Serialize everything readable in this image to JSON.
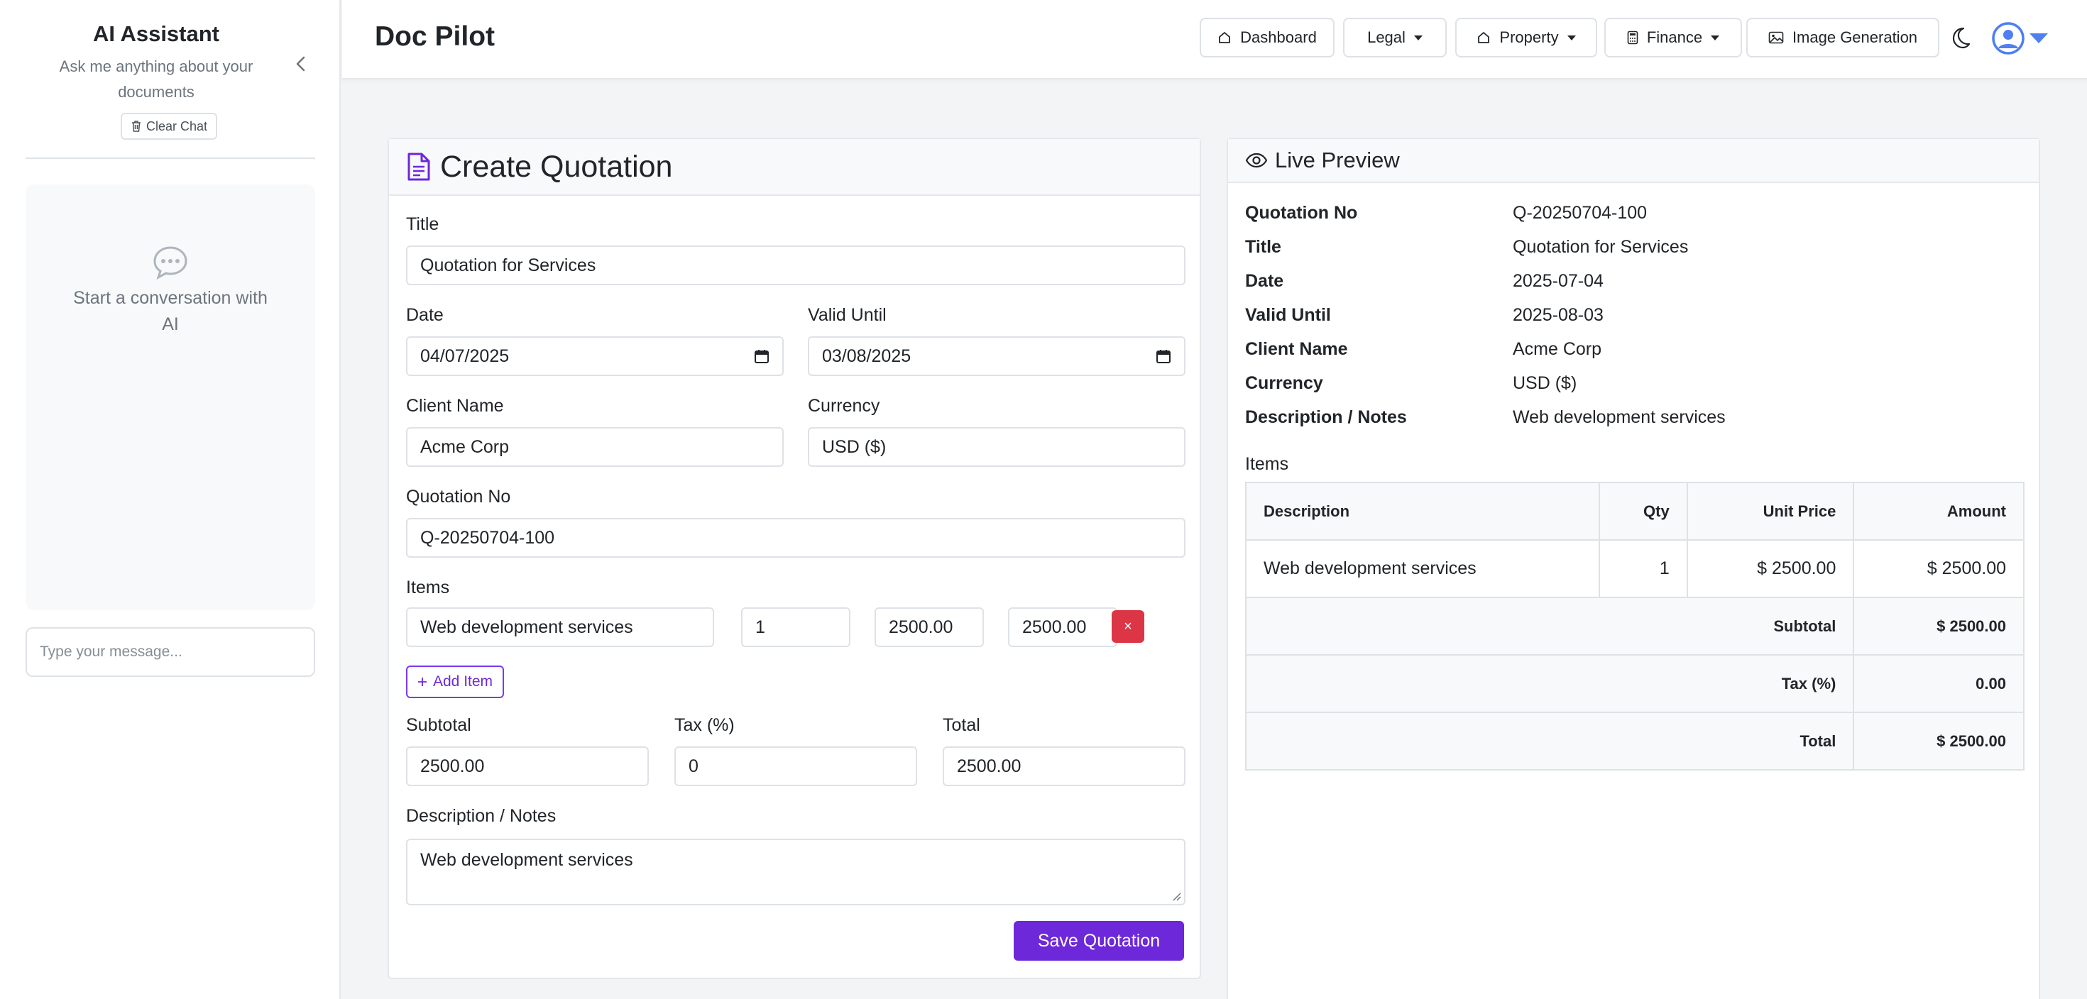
{
  "sidebar": {
    "title": "AI Assistant",
    "subtitle": "Ask me anything about your documents",
    "clear_label": "Clear Chat",
    "empty_text": "Start a conversation with AI",
    "input_placeholder": "Type your message..."
  },
  "header": {
    "brand": "Doc Pilot",
    "nav": {
      "dashboard": "Dashboard",
      "legal": "Legal",
      "property": "Property",
      "finance": "Finance",
      "image_generation": "Image Generation"
    }
  },
  "form": {
    "title": "Create Quotation",
    "labels": {
      "title": "Title",
      "date": "Date",
      "valid_until": "Valid Until",
      "client_name": "Client Name",
      "currency": "Currency",
      "quotation_no": "Quotation No",
      "items": "Items",
      "subtotal": "Subtotal",
      "tax": "Tax (%)",
      "total": "Total",
      "description": "Description / Notes"
    },
    "values": {
      "title": "Quotation for Services",
      "date": "04/07/2025",
      "valid_until": "03/08/2025",
      "client_name": "Acme Corp",
      "currency": "USD ($)",
      "quotation_no": "Q-20250704-100",
      "subtotal": "2500.00",
      "tax": "0",
      "total": "2500.00",
      "description": "Web development services"
    },
    "item": {
      "description": "Web development services",
      "qty": "1",
      "unit_price": "2500.00",
      "amount": "2500.00",
      "delete_label": "×"
    },
    "add_item_label": "Add Item",
    "save_label": "Save Quotation"
  },
  "preview": {
    "title": "Live Preview",
    "fields": {
      "quotation_no_key": "Quotation No",
      "quotation_no_val": "Q-20250704-100",
      "title_key": "Title",
      "title_val": "Quotation for Services",
      "date_key": "Date",
      "date_val": "2025-07-04",
      "valid_key": "Valid Until",
      "valid_val": "2025-08-03",
      "client_key": "Client Name",
      "client_val": "Acme Corp",
      "currency_key": "Currency",
      "currency_val": "USD ($)",
      "desc_key": "Description / Notes",
      "desc_val": "Web development services"
    },
    "items_label": "Items",
    "table": {
      "headers": {
        "description": "Description",
        "qty": "Qty",
        "unit_price": "Unit Price",
        "amount": "Amount"
      },
      "row": {
        "description": "Web development services",
        "qty": "1",
        "unit_price": "$ 2500.00",
        "amount": "$ 2500.00"
      },
      "subtotal_label": "Subtotal",
      "subtotal_value": "$ 2500.00",
      "tax_label": "Tax (%)",
      "tax_value": "0.00",
      "total_label": "Total",
      "total_value": "$ 2500.00"
    }
  },
  "colors": {
    "accent": "#6d28d9",
    "danger": "#dc3545",
    "user_icon": "#4f7ff0"
  },
  "icons": [
    "chevron-left-icon",
    "trash-icon",
    "chat-bubble-icon",
    "home-icon",
    "calculator-icon",
    "image-icon",
    "moon-icon",
    "user-circle-icon",
    "document-icon",
    "eye-icon",
    "calendar-icon",
    "plus-icon"
  ]
}
